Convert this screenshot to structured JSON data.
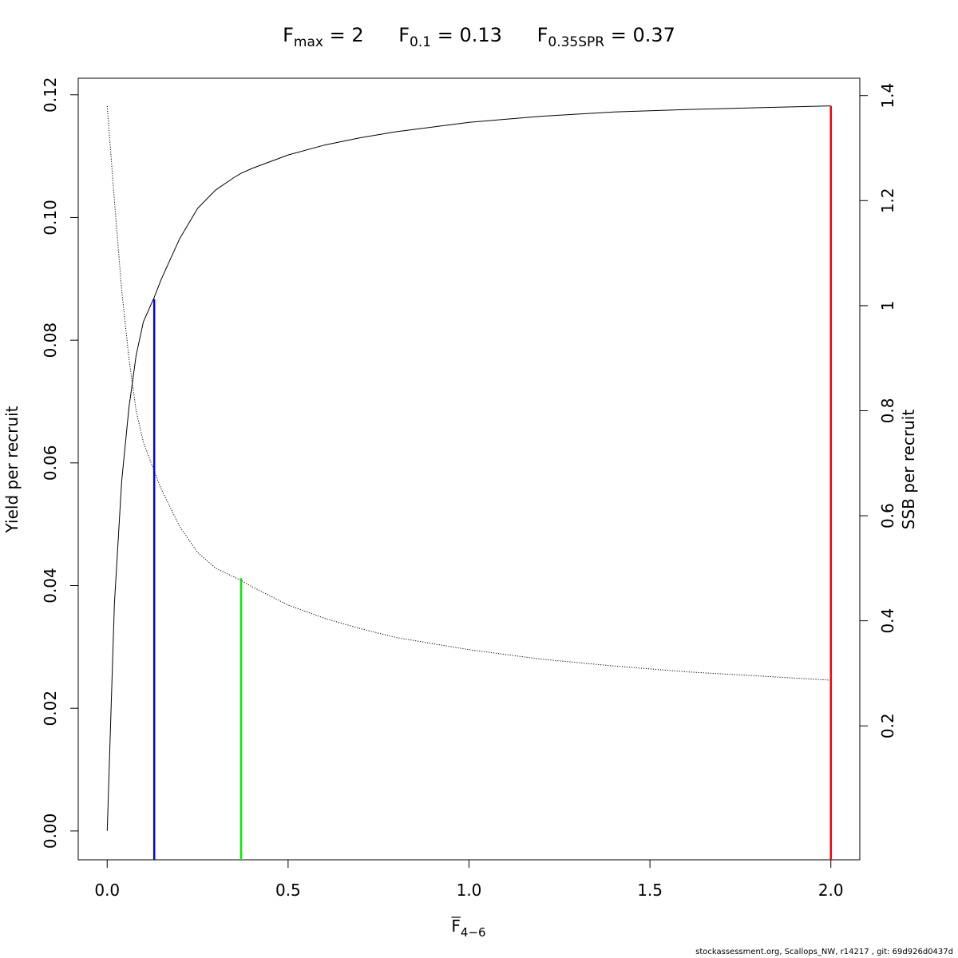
{
  "title": {
    "fmax": {
      "base": "F",
      "sub": "max",
      "value": "= 2"
    },
    "f01": {
      "base": "F",
      "sub": "0.1",
      "value": "= 0.13"
    },
    "fspr": {
      "base": "F",
      "sub": "0.35SPR",
      "value": "= 0.37"
    }
  },
  "footer": "stockassessment.org, Scallops_NW, r14217 , git: 69d926d0437d",
  "chart_data": {
    "type": "line",
    "xlabel": {
      "base": "F",
      "sub": "4−6",
      "overline": true
    },
    "ylabel": "Yield per recruit",
    "y2label": "SSB per recruit",
    "xlim": [
      -0.08,
      2.08
    ],
    "ylim": [
      -0.0047,
      0.1227
    ],
    "y2lim": [
      -0.055,
      1.433
    ],
    "x_ticks": [
      0.0,
      0.5,
      1.0,
      1.5,
      2.0
    ],
    "x_tick_labels": [
      "0.0",
      "0.5",
      "1.0",
      "1.5",
      "2.0"
    ],
    "y_ticks": [
      0.0,
      0.02,
      0.04,
      0.06,
      0.08,
      0.1,
      0.12
    ],
    "y_tick_labels": [
      "0.00",
      "0.02",
      "0.04",
      "0.06",
      "0.08",
      "0.10",
      "0.12"
    ],
    "y2_ticks": [
      0.2,
      0.4,
      0.6,
      0.8,
      1.0,
      1.2,
      1.4
    ],
    "y2_tick_labels": [
      "0.2",
      "0.4",
      "0.6",
      "0.8",
      "1",
      "1.2",
      "1.4"
    ],
    "series": [
      {
        "axis": "left",
        "style": "solid",
        "color": "#000000",
        "x": [
          0,
          0.02,
          0.04,
          0.06,
          0.08,
          0.1,
          0.13,
          0.15,
          0.2,
          0.25,
          0.3,
          0.35,
          0.37,
          0.4,
          0.5,
          0.6,
          0.7,
          0.8,
          1.0,
          1.2,
          1.4,
          1.6,
          1.8,
          2.0
        ],
        "y": [
          0,
          0.037,
          0.057,
          0.069,
          0.0775,
          0.083,
          0.087,
          0.09,
          0.0965,
          0.1015,
          0.1045,
          0.1065,
          0.1072,
          0.108,
          0.1102,
          0.1118,
          0.113,
          0.114,
          0.1155,
          0.1165,
          0.1172,
          0.1176,
          0.1179,
          0.1182
        ]
      },
      {
        "axis": "right",
        "style": "dotted",
        "color": "#000000",
        "x": [
          0,
          0.02,
          0.04,
          0.06,
          0.08,
          0.1,
          0.13,
          0.15,
          0.2,
          0.25,
          0.3,
          0.37,
          0.4,
          0.5,
          0.6,
          0.7,
          0.8,
          1.0,
          1.2,
          1.4,
          1.6,
          1.8,
          2.0
        ],
        "y": [
          1.38,
          1.2,
          1.03,
          0.9,
          0.8,
          0.74,
          0.685,
          0.65,
          0.58,
          0.53,
          0.5,
          0.477,
          0.465,
          0.43,
          0.405,
          0.385,
          0.368,
          0.345,
          0.327,
          0.314,
          0.303,
          0.295,
          0.287
        ]
      }
    ],
    "reference_lines": [
      {
        "x": 0.13,
        "y_top": 0.0867,
        "color": "#0000ff"
      },
      {
        "x": 0.37,
        "y_top": 0.0412,
        "color": "#00ee00"
      },
      {
        "x": 2.0,
        "y_top": 0.1182,
        "color": "#ff0000"
      }
    ]
  }
}
